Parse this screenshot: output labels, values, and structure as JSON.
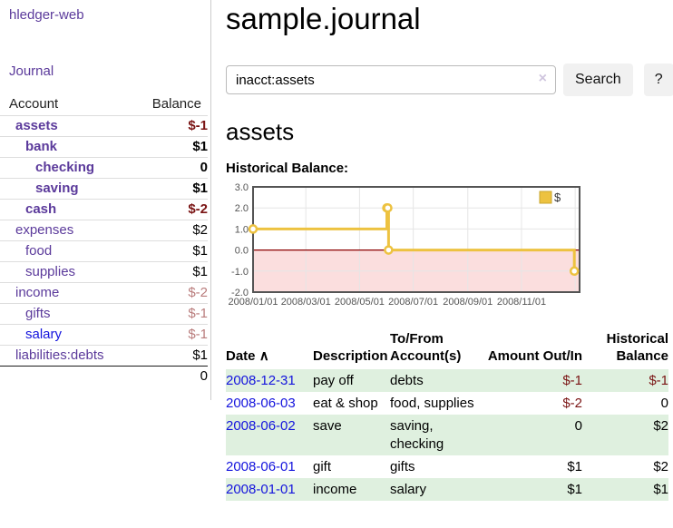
{
  "app": {
    "brand": "hledger-web",
    "nav": {
      "journal": "Journal"
    }
  },
  "colors": {
    "link_purple": "#5b3a9b",
    "link_blue": "#1414dd",
    "negative_strong": "#7a1414",
    "negative_soft": "#b97c7c",
    "row_green": "#dff0df",
    "chart_gold": "#EDC240",
    "zero_line": "#8b0000",
    "negative_region": "#fbdede"
  },
  "sidebar": {
    "table_headers": {
      "account": "Account",
      "balance": "Balance"
    },
    "accounts": [
      {
        "name": "assets",
        "depth": 0,
        "bold": true,
        "balance": "$-1",
        "negative": "strong",
        "link_style": "visited"
      },
      {
        "name": "bank",
        "depth": 1,
        "bold": true,
        "balance": "$1",
        "negative": "none",
        "link_style": "visited"
      },
      {
        "name": "checking",
        "depth": 2,
        "bold": true,
        "balance": "0",
        "negative": "none",
        "link_style": "visited"
      },
      {
        "name": "saving",
        "depth": 2,
        "bold": true,
        "balance": "$1",
        "negative": "none",
        "link_style": "visited"
      },
      {
        "name": "cash",
        "depth": 1,
        "bold": true,
        "balance": "$-2",
        "negative": "strong",
        "link_style": "visited"
      },
      {
        "name": "expenses",
        "depth": 0,
        "bold": false,
        "balance": "$2",
        "negative": "none",
        "link_style": "visited"
      },
      {
        "name": "food",
        "depth": 1,
        "bold": false,
        "balance": "$1",
        "negative": "none",
        "link_style": "visited"
      },
      {
        "name": "supplies",
        "depth": 1,
        "bold": false,
        "balance": "$1",
        "negative": "none",
        "link_style": "visited"
      },
      {
        "name": "income",
        "depth": 0,
        "bold": false,
        "balance": "$-2",
        "negative": "soft",
        "link_style": "visited"
      },
      {
        "name": "gifts",
        "depth": 1,
        "bold": false,
        "balance": "$-1",
        "negative": "soft",
        "link_style": "visited"
      },
      {
        "name": "salary",
        "depth": 1,
        "bold": false,
        "balance": "$-1",
        "negative": "soft",
        "link_style": "unvisited"
      },
      {
        "name": "liabilities:debts",
        "depth": 0,
        "bold": false,
        "balance": "$1",
        "negative": "none",
        "link_style": "visited"
      }
    ],
    "total_balance": "0"
  },
  "main": {
    "title": "sample.journal",
    "search": {
      "value": "inacct:assets",
      "clear_icon": "×",
      "button_label": "Search",
      "help_label": "?"
    },
    "account_heading": "assets",
    "chart_label": "Historical Balance:"
  },
  "chart_data": {
    "type": "line",
    "style": "steps",
    "title": "Historical Balance",
    "series": [
      {
        "name": "$",
        "color": "#EDC240",
        "points": [
          [
            "2008-01-01",
            1
          ],
          [
            "2008-06-01",
            2
          ],
          [
            "2008-06-02",
            2
          ],
          [
            "2008-06-03",
            0
          ],
          [
            "2008-12-31",
            -1
          ]
        ]
      }
    ],
    "x_range": [
      "2008-01-01",
      "2009-01-06"
    ],
    "y_range": [
      -2,
      3
    ],
    "x_ticks": [
      {
        "label": "2008/01/01",
        "date": "2008-01-01"
      },
      {
        "label": "2008/03/01",
        "date": "2008-03-01"
      },
      {
        "label": "2008/05/01",
        "date": "2008-05-01"
      },
      {
        "label": "2008/07/01",
        "date": "2008-07-01"
      },
      {
        "label": "2008/09/01",
        "date": "2008-09-01"
      },
      {
        "label": "2008/11/01",
        "date": "2008-11-01"
      }
    ],
    "x_gridline_dates": [
      "2008-03-01",
      "2008-05-01",
      "2008-07-01",
      "2008-09-01",
      "2008-11-01",
      "2009-01-01"
    ],
    "y_ticks": [
      {
        "label": "3.0",
        "value": 3
      },
      {
        "label": "2.0",
        "value": 2
      },
      {
        "label": "1.0",
        "value": 1
      },
      {
        "label": "0.0",
        "value": 0
      },
      {
        "label": "-1.0",
        "value": -1
      },
      {
        "label": "-2.0",
        "value": -2
      }
    ],
    "legend": {
      "label": "$",
      "position": "top-right"
    },
    "grid": true
  },
  "register": {
    "headers": {
      "date": "Date",
      "sort_icon": "∧",
      "description": "Description",
      "account": "To/From Account(s)",
      "amount": "Amount Out/In",
      "balance": "Historical Balance"
    },
    "rows": [
      {
        "date": "2008-12-31",
        "description": "pay off",
        "accounts": "debts",
        "amount": "$-1",
        "amount_negative": true,
        "balance": "$-1",
        "balance_negative": true
      },
      {
        "date": "2008-06-03",
        "description": "eat & shop",
        "accounts": "food, supplies",
        "amount": "$-2",
        "amount_negative": true,
        "balance": "0",
        "balance_negative": false
      },
      {
        "date": "2008-06-02",
        "description": "save",
        "accounts": "saving, checking",
        "amount": "0",
        "amount_negative": false,
        "balance": "$2",
        "balance_negative": false
      },
      {
        "date": "2008-06-01",
        "description": "gift",
        "accounts": "gifts",
        "amount": "$1",
        "amount_negative": false,
        "balance": "$2",
        "balance_negative": false
      },
      {
        "date": "2008-01-01",
        "description": "income",
        "accounts": "salary",
        "amount": "$1",
        "amount_negative": false,
        "balance": "$1",
        "balance_negative": false
      }
    ]
  }
}
